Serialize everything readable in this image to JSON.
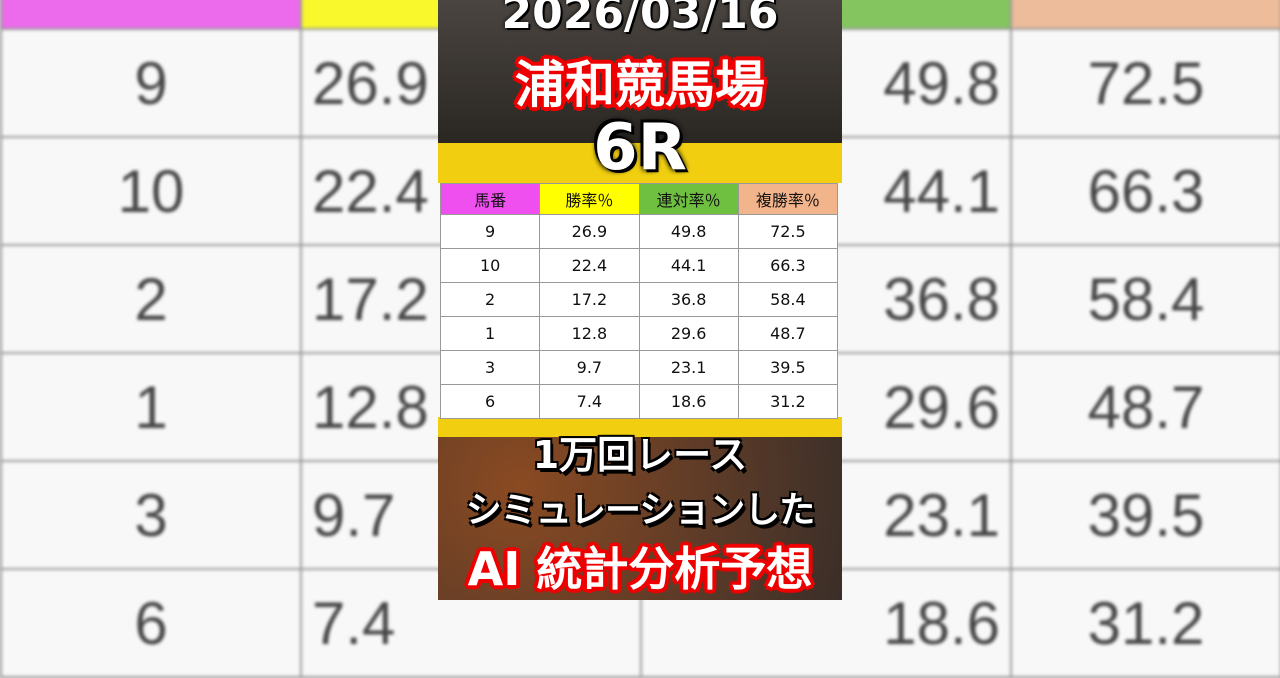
{
  "date": "2026/03/16",
  "venue": "浦和競馬場",
  "race": "6R",
  "table": {
    "headers": [
      "馬番",
      "勝率％",
      "連対率％",
      "複勝率％"
    ],
    "header_colors": [
      "#f04ff0",
      "#ffff00",
      "#6fc040",
      "#f2b48a"
    ],
    "rows": [
      [
        "9",
        "26.9",
        "49.8",
        "72.5"
      ],
      [
        "10",
        "22.4",
        "44.1",
        "66.3"
      ],
      [
        "2",
        "17.2",
        "36.8",
        "58.4"
      ],
      [
        "1",
        "12.8",
        "29.6",
        "48.7"
      ],
      [
        "3",
        "9.7",
        "23.1",
        "39.5"
      ],
      [
        "6",
        "7.4",
        "18.6",
        "31.2"
      ]
    ]
  },
  "caption": {
    "line1": "1万回レース",
    "line2": "シミュレーションした",
    "line3": "AI 統計分析予想"
  }
}
